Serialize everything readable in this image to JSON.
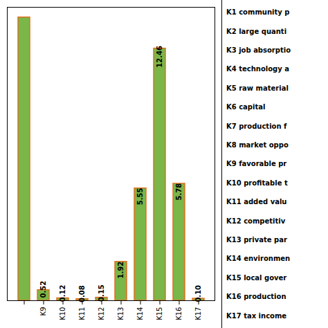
{
  "chart_data": {
    "type": "bar",
    "categories": [
      null,
      "K9",
      "K10",
      "K11",
      "K12",
      "K13",
      "K14",
      "K15",
      "K16",
      "K17"
    ],
    "values": [
      14.0,
      0.52,
      0.12,
      0.08,
      0.15,
      1.92,
      5.55,
      12.46,
      5.78,
      0.1
    ],
    "value_labels": [
      null,
      "0.52",
      "0.12",
      "0.08",
      "0.15",
      "1.92",
      "5.55",
      "12.46",
      "5.78",
      "0.10"
    ],
    "color": "#7ab648",
    "ylim": [
      0,
      14.5
    ],
    "data_labels": true,
    "tick_labels": "x",
    "annotations": [
      "K1 community p",
      "K2 large quanti",
      "K3 job absorptio",
      "K4 technology a",
      "K5 raw material",
      "K6 capital",
      "K7 production f",
      "K8 market oppo",
      "K9 favorable pr",
      "K10 profitable t",
      "K11 added valu",
      "K12 competitiv",
      "K13 private par",
      "K14 environmen",
      "K15 local gover",
      "K16 production",
      "K17 tax income"
    ]
  }
}
